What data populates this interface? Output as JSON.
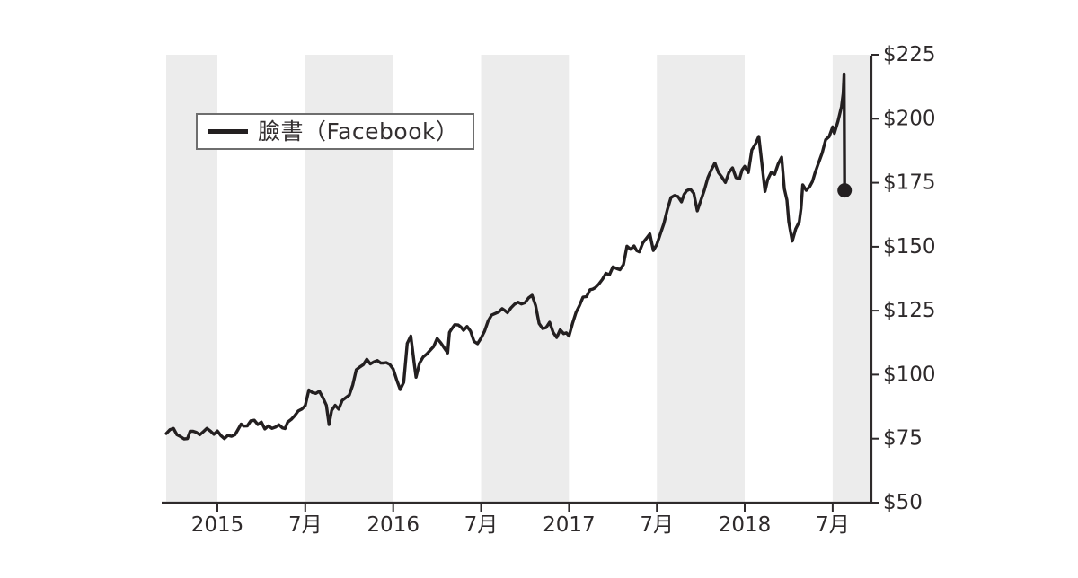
{
  "chart_data": {
    "type": "line",
    "title": "",
    "xlabel": "",
    "ylabel": "",
    "xlim": [
      2014.7087,
      2018.7203
    ],
    "ylim": [
      50,
      225
    ],
    "grid": false,
    "legend_position": "upper-left-inside",
    "colors": {
      "line": "#231f20",
      "band": "#ececec",
      "axis": "#2e2a2b",
      "tick_label": "#2e2a2b",
      "legend_border": "#6e6e6e",
      "background": "#ffffff"
    },
    "x_ticks": [
      {
        "t": 2015.0,
        "label": "2015"
      },
      {
        "t": 2015.5,
        "label": "7月"
      },
      {
        "t": 2016.0,
        "label": "2016"
      },
      {
        "t": 2016.5,
        "label": "7月"
      },
      {
        "t": 2017.0,
        "label": "2017"
      },
      {
        "t": 2017.5,
        "label": "7月"
      },
      {
        "t": 2018.0,
        "label": "2018"
      },
      {
        "t": 2018.5,
        "label": "7月"
      }
    ],
    "y_ticks": [
      {
        "v": 50,
        "label": "$50"
      },
      {
        "v": 75,
        "label": "$75"
      },
      {
        "v": 100,
        "label": "$100"
      },
      {
        "v": 125,
        "label": "$125"
      },
      {
        "v": 150,
        "label": "$150"
      },
      {
        "v": 175,
        "label": "$175"
      },
      {
        "v": 200,
        "label": "$200"
      },
      {
        "v": 225,
        "label": "$225"
      }
    ],
    "shaded_bands": [
      [
        2014.7087,
        2015.0
      ],
      [
        2015.5,
        2016.0
      ],
      [
        2016.5,
        2017.0
      ],
      [
        2017.5,
        2018.0
      ],
      [
        2018.5,
        2018.7203
      ]
    ],
    "end_marker": {
      "t": 2018.568,
      "price": 172.0
    },
    "series": [
      {
        "name": "臉書（Facebook）",
        "points": [
          [
            2014.709,
            77.0
          ],
          [
            2014.73,
            78.5
          ],
          [
            2014.75,
            79.0
          ],
          [
            2014.77,
            76.5
          ],
          [
            2014.79,
            75.8
          ],
          [
            2014.81,
            74.9
          ],
          [
            2014.83,
            75.0
          ],
          [
            2014.86,
            77.9
          ],
          [
            2014.88,
            77.5
          ],
          [
            2014.9,
            76.5
          ],
          [
            2014.92,
            77.7
          ],
          [
            2014.94,
            79.0
          ],
          [
            2014.96,
            78.0
          ],
          [
            2014.98,
            76.7
          ],
          [
            2015.0,
            78.0
          ],
          [
            2015.02,
            76.2
          ],
          [
            2015.04,
            75.0
          ],
          [
            2015.06,
            76.3
          ],
          [
            2015.08,
            75.9
          ],
          [
            2015.1,
            76.5
          ],
          [
            2015.12,
            78.9
          ],
          [
            2015.15,
            79.9
          ],
          [
            2015.17,
            80.0
          ],
          [
            2015.19,
            82.0
          ],
          [
            2015.21,
            82.2
          ],
          [
            2015.23,
            80.5
          ],
          [
            2015.25,
            81.5
          ],
          [
            2015.27,
            78.8
          ],
          [
            2015.29,
            80.0
          ],
          [
            2015.31,
            79.0
          ],
          [
            2015.33,
            79.5
          ],
          [
            2015.35,
            80.4
          ],
          [
            2015.37,
            79.2
          ],
          [
            2015.4,
            81.5
          ],
          [
            2015.42,
            82.5
          ],
          [
            2015.44,
            84.0
          ],
          [
            2015.46,
            85.8
          ],
          [
            2015.48,
            86.5
          ],
          [
            2015.5,
            87.9
          ],
          [
            2015.52,
            94.0
          ],
          [
            2015.54,
            93.0
          ],
          [
            2015.58,
            93.5
          ],
          [
            2015.6,
            91.0
          ],
          [
            2015.62,
            88.0
          ],
          [
            2015.635,
            80.5
          ],
          [
            2015.65,
            86.0
          ],
          [
            2015.67,
            88.0
          ],
          [
            2015.69,
            86.5
          ],
          [
            2015.71,
            89.9
          ],
          [
            2015.73,
            91.0
          ],
          [
            2015.75,
            92.0
          ],
          [
            2015.77,
            96.0
          ],
          [
            2015.79,
            101.9
          ],
          [
            2015.81,
            103.0
          ],
          [
            2015.83,
            103.9
          ],
          [
            2015.85,
            106.0
          ],
          [
            2015.87,
            104.2
          ],
          [
            2015.89,
            105.0
          ],
          [
            2015.91,
            105.5
          ],
          [
            2015.93,
            104.5
          ],
          [
            2015.96,
            104.7
          ],
          [
            2015.98,
            104.0
          ],
          [
            2016.0,
            102.2
          ],
          [
            2016.02,
            97.9
          ],
          [
            2016.04,
            94.2
          ],
          [
            2016.06,
            97.0
          ],
          [
            2016.08,
            112.2
          ],
          [
            2016.1,
            115.1
          ],
          [
            2016.12,
            104.0
          ],
          [
            2016.13,
            99.0
          ],
          [
            2016.15,
            104.5
          ],
          [
            2016.17,
            106.9
          ],
          [
            2016.19,
            108.0
          ],
          [
            2016.21,
            109.5
          ],
          [
            2016.23,
            111.0
          ],
          [
            2016.25,
            114.1
          ],
          [
            2016.27,
            112.5
          ],
          [
            2016.29,
            110.5
          ],
          [
            2016.31,
            108.5
          ],
          [
            2016.32,
            116.5
          ],
          [
            2016.33,
            117.6
          ],
          [
            2016.35,
            119.5
          ],
          [
            2016.37,
            119.4
          ],
          [
            2016.4,
            117.3
          ],
          [
            2016.42,
            118.8
          ],
          [
            2016.44,
            117.0
          ],
          [
            2016.46,
            113.0
          ],
          [
            2016.48,
            112.1
          ],
          [
            2016.5,
            114.3
          ],
          [
            2016.52,
            117.0
          ],
          [
            2016.54,
            121.0
          ],
          [
            2016.56,
            123.3
          ],
          [
            2016.58,
            123.9
          ],
          [
            2016.6,
            124.5
          ],
          [
            2016.62,
            125.8
          ],
          [
            2016.65,
            124.2
          ],
          [
            2016.67,
            126.1
          ],
          [
            2016.69,
            127.5
          ],
          [
            2016.71,
            128.3
          ],
          [
            2016.73,
            127.6
          ],
          [
            2016.75,
            128.1
          ],
          [
            2016.77,
            130.0
          ],
          [
            2016.79,
            131.0
          ],
          [
            2016.81,
            127.0
          ],
          [
            2016.83,
            120.0
          ],
          [
            2016.85,
            118.0
          ],
          [
            2016.87,
            118.4
          ],
          [
            2016.89,
            120.5
          ],
          [
            2016.91,
            116.5
          ],
          [
            2016.93,
            114.5
          ],
          [
            2016.95,
            117.5
          ],
          [
            2016.97,
            116.0
          ],
          [
            2017.0,
            115.1
          ],
          [
            2017.02,
            120.0
          ],
          [
            2017.04,
            124.3
          ],
          [
            2017.06,
            127.0
          ],
          [
            2017.08,
            130.3
          ],
          [
            2017.1,
            130.5
          ],
          [
            2017.12,
            133.2
          ],
          [
            2017.15,
            134.0
          ],
          [
            2017.17,
            135.4
          ],
          [
            2017.19,
            137.2
          ],
          [
            2017.21,
            139.6
          ],
          [
            2017.23,
            139.0
          ],
          [
            2017.25,
            142.1
          ],
          [
            2017.27,
            141.5
          ],
          [
            2017.29,
            141.0
          ],
          [
            2017.31,
            143.0
          ],
          [
            2017.33,
            150.2
          ],
          [
            2017.35,
            149.0
          ],
          [
            2017.37,
            150.3
          ],
          [
            2017.4,
            148.0
          ],
          [
            2017.42,
            151.5
          ],
          [
            2017.44,
            153.2
          ],
          [
            2017.46,
            155.0
          ],
          [
            2017.48,
            148.5
          ],
          [
            2017.5,
            150.9
          ],
          [
            2017.52,
            155.0
          ],
          [
            2017.54,
            159.0
          ],
          [
            2017.56,
            164.5
          ],
          [
            2017.58,
            169.2
          ],
          [
            2017.6,
            170.0
          ],
          [
            2017.62,
            169.6
          ],
          [
            2017.64,
            167.5
          ],
          [
            2017.67,
            171.9
          ],
          [
            2017.69,
            172.5
          ],
          [
            2017.71,
            170.9
          ],
          [
            2017.73,
            164.0
          ],
          [
            2017.75,
            168.0
          ],
          [
            2017.77,
            172.0
          ],
          [
            2017.79,
            177.0
          ],
          [
            2017.81,
            180.1
          ],
          [
            2017.83,
            182.7
          ],
          [
            2017.85,
            179.0
          ],
          [
            2017.87,
            177.2
          ],
          [
            2017.89,
            175.1
          ],
          [
            2017.91,
            179.0
          ],
          [
            2017.93,
            180.8
          ],
          [
            2017.95,
            177.0
          ],
          [
            2017.97,
            176.5
          ],
          [
            2018.0,
            181.4
          ],
          [
            2018.02,
            179.0
          ],
          [
            2018.04,
            187.8
          ],
          [
            2018.06,
            190.0
          ],
          [
            2018.08,
            193.1
          ],
          [
            2018.1,
            181.0
          ],
          [
            2018.115,
            171.6
          ],
          [
            2018.13,
            176.1
          ],
          [
            2018.15,
            179.0
          ],
          [
            2018.17,
            178.3
          ],
          [
            2018.19,
            182.3
          ],
          [
            2018.21,
            185.0
          ],
          [
            2018.225,
            172.6
          ],
          [
            2018.24,
            168.2
          ],
          [
            2018.25,
            159.8
          ],
          [
            2018.26,
            156.0
          ],
          [
            2018.27,
            152.2
          ],
          [
            2018.29,
            157.0
          ],
          [
            2018.31,
            159.7
          ],
          [
            2018.32,
            165.0
          ],
          [
            2018.33,
            174.2
          ],
          [
            2018.35,
            172.0
          ],
          [
            2018.37,
            173.6
          ],
          [
            2018.4,
            178.9
          ],
          [
            2018.42,
            182.7
          ],
          [
            2018.44,
            186.6
          ],
          [
            2018.46,
            191.8
          ],
          [
            2018.48,
            193.0
          ],
          [
            2018.5,
            196.8
          ],
          [
            2018.51,
            194.3
          ],
          [
            2018.53,
            199.0
          ],
          [
            2018.55,
            204.7
          ],
          [
            2018.56,
            209.9
          ],
          [
            2018.565,
            217.5
          ],
          [
            2018.568,
            172.0
          ]
        ]
      }
    ]
  }
}
